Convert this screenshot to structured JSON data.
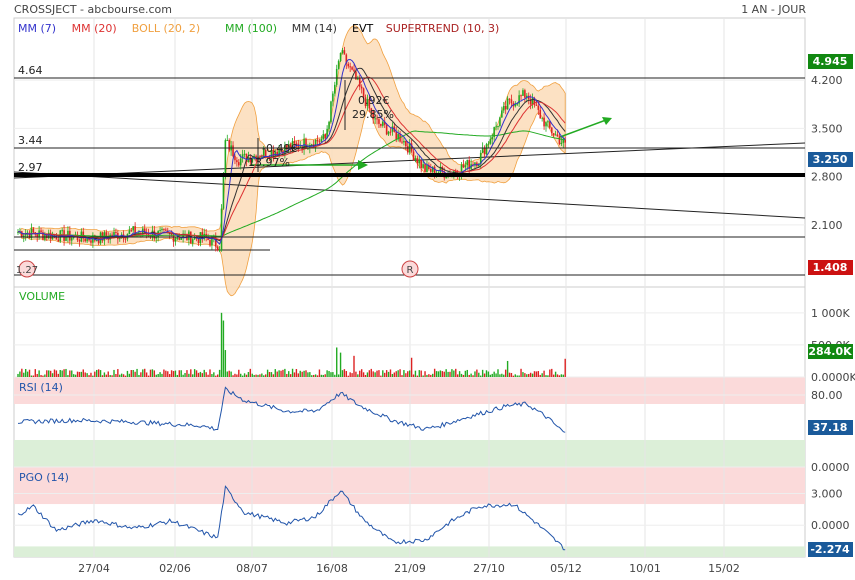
{
  "header": {
    "title": "CROSSJECT - abcbourse.com",
    "period": "1 AN - JOUR"
  },
  "legend": [
    {
      "label": "MM (7)",
      "color": "#3333cc"
    },
    {
      "label": "MM (20)",
      "color": "#dd3333"
    },
    {
      "label": "BOLL (20, 2)",
      "color": "#f0a040"
    },
    {
      "label": "MM (100)",
      "color": "#22aa22"
    },
    {
      "label": "MM (14)",
      "color": "#333333"
    },
    {
      "label": "EVT",
      "color": "#000000"
    },
    {
      "label": "SUPERTREND (10, 3)",
      "color": "#aa2222"
    }
  ],
  "annotations": {
    "level_464": "4.64",
    "level_344": "3.44",
    "level_297": "2.97",
    "level_127": "1.27",
    "move_up_value": "0.92€",
    "move_up_pct": "29.85%",
    "move_down_value": "-0.49€",
    "move_down_pct": "13.97%",
    "marker_r": "R"
  },
  "badges": {
    "high": "4.945",
    "last": "3.250",
    "low": "1.408",
    "volume_last": "284.0K",
    "rsi_last": "37.18",
    "pgo_last": "-2.274"
  },
  "colors": {
    "up": "#22aa22",
    "down": "#dd2222",
    "boll_fill": "#fbdcb8",
    "rsi_high_zone": "#fbdada",
    "rsi_low_zone": "#dcefd8",
    "indicator_line": "#2255aa",
    "badge_green": "#118811",
    "badge_red": "#cc1111",
    "badge_blue": "#1a5a9a"
  },
  "chart_data": [
    {
      "type": "candlestick",
      "name": "price",
      "y_ticks": [
        "4.200",
        "3.500",
        "2.800",
        "2.100"
      ],
      "y_tick_values": [
        4.2,
        3.5,
        2.8,
        2.1
      ],
      "ylim": [
        1.2,
        5.1
      ],
      "x_ticks": [
        "27/04",
        "02/06",
        "08/07",
        "16/08",
        "21/09",
        "27/10",
        "05/12",
        "10/01",
        "15/02"
      ],
      "keyframes": [
        {
          "i": 0,
          "v": 2.0
        },
        {
          "i": 18,
          "v": 1.95
        },
        {
          "i": 40,
          "v": 1.9
        },
        {
          "i": 60,
          "v": 2.0
        },
        {
          "i": 78,
          "v": 1.95
        },
        {
          "i": 98,
          "v": 1.9
        },
        {
          "i": 105,
          "v": 1.8
        },
        {
          "i": 108,
          "v": 3.3
        },
        {
          "i": 115,
          "v": 3.05
        },
        {
          "i": 130,
          "v": 3.15
        },
        {
          "i": 145,
          "v": 3.25
        },
        {
          "i": 160,
          "v": 3.35
        },
        {
          "i": 168,
          "v": 4.6
        },
        {
          "i": 176,
          "v": 4.2
        },
        {
          "i": 186,
          "v": 3.6
        },
        {
          "i": 200,
          "v": 3.35
        },
        {
          "i": 212,
          "v": 2.9
        },
        {
          "i": 225,
          "v": 2.85
        },
        {
          "i": 240,
          "v": 3.05
        },
        {
          "i": 255,
          "v": 3.85
        },
        {
          "i": 265,
          "v": 4.0
        },
        {
          "i": 275,
          "v": 3.55
        },
        {
          "i": 285,
          "v": 3.25
        }
      ]
    },
    {
      "type": "bar",
      "name": "volume",
      "label": "VOLUME",
      "y_ticks": [
        "1 000K",
        "500.0K",
        "0.0000K"
      ],
      "y_tick_values": [
        1000,
        500,
        0
      ],
      "ylim": [
        0,
        1200
      ],
      "spikes": [
        {
          "i": 106,
          "v": 1000
        },
        {
          "i": 107,
          "v": 880
        },
        {
          "i": 108,
          "v": 420
        },
        {
          "i": 166,
          "v": 460
        },
        {
          "i": 168,
          "v": 380
        },
        {
          "i": 175,
          "v": 330
        },
        {
          "i": 205,
          "v": 300
        },
        {
          "i": 255,
          "v": 250
        },
        {
          "i": 285,
          "v": 284
        }
      ]
    },
    {
      "type": "line",
      "name": "rsi",
      "label": "RSI (14)",
      "y_ticks": [
        "80.00",
        "0.0000"
      ],
      "y_tick_values": [
        80,
        0
      ],
      "ylim": [
        0,
        100
      ],
      "zones": [
        70,
        30
      ],
      "keyframes": [
        {
          "i": 0,
          "v": 50
        },
        {
          "i": 30,
          "v": 52
        },
        {
          "i": 60,
          "v": 50
        },
        {
          "i": 95,
          "v": 46
        },
        {
          "i": 104,
          "v": 42
        },
        {
          "i": 108,
          "v": 86
        },
        {
          "i": 118,
          "v": 74
        },
        {
          "i": 140,
          "v": 62
        },
        {
          "i": 155,
          "v": 62
        },
        {
          "i": 168,
          "v": 82
        },
        {
          "i": 178,
          "v": 68
        },
        {
          "i": 195,
          "v": 52
        },
        {
          "i": 212,
          "v": 42
        },
        {
          "i": 220,
          "v": 46
        },
        {
          "i": 235,
          "v": 56
        },
        {
          "i": 255,
          "v": 68
        },
        {
          "i": 265,
          "v": 70
        },
        {
          "i": 275,
          "v": 56
        },
        {
          "i": 285,
          "v": 37.18
        }
      ]
    },
    {
      "type": "line",
      "name": "pgo",
      "label": "PGO (14)",
      "y_ticks": [
        "3.000",
        "0.0000"
      ],
      "y_tick_values": [
        3,
        0
      ],
      "ylim": [
        -3,
        5.5
      ],
      "zones": [
        2,
        -2
      ],
      "keyframes": [
        {
          "i": 0,
          "v": 1.0
        },
        {
          "i": 8,
          "v": 1.8
        },
        {
          "i": 20,
          "v": -0.5
        },
        {
          "i": 40,
          "v": 0.5
        },
        {
          "i": 60,
          "v": -0.3
        },
        {
          "i": 80,
          "v": 0.4
        },
        {
          "i": 104,
          "v": -1.2
        },
        {
          "i": 108,
          "v": 3.5
        },
        {
          "i": 118,
          "v": 1.2
        },
        {
          "i": 140,
          "v": 0.2
        },
        {
          "i": 155,
          "v": 0.8
        },
        {
          "i": 168,
          "v": 3.3
        },
        {
          "i": 180,
          "v": 0.5
        },
        {
          "i": 195,
          "v": -1.6
        },
        {
          "i": 212,
          "v": -1.4
        },
        {
          "i": 225,
          "v": 0.3
        },
        {
          "i": 240,
          "v": 1.8
        },
        {
          "i": 258,
          "v": 2.0
        },
        {
          "i": 270,
          "v": 0.2
        },
        {
          "i": 285,
          "v": -2.274
        }
      ]
    }
  ]
}
